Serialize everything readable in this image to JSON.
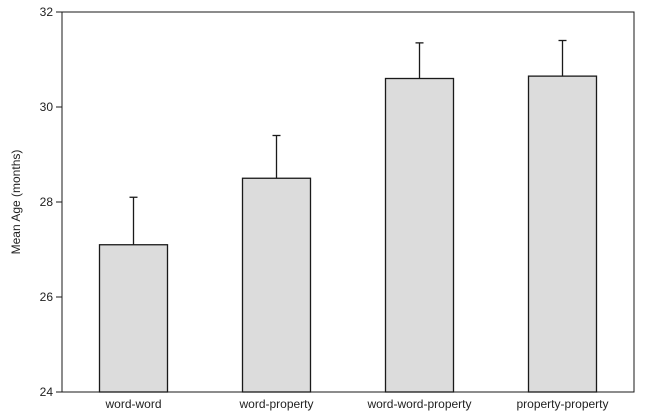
{
  "chart_data": {
    "type": "bar",
    "title": "",
    "xlabel": "",
    "ylabel": "Mean Age (months)",
    "categories": [
      "word-word",
      "word-property",
      "word-word-property",
      "property-property"
    ],
    "values": [
      27.1,
      28.5,
      30.6,
      30.65
    ],
    "error_upper": [
      28.1,
      29.4,
      31.35,
      31.4
    ],
    "ylim": [
      24,
      32
    ],
    "yticks": [
      24,
      26,
      28,
      30,
      32
    ],
    "grid": false,
    "legend": "none",
    "bar_color": "#dcdcdc",
    "edge_color": "#1a1a1a"
  }
}
